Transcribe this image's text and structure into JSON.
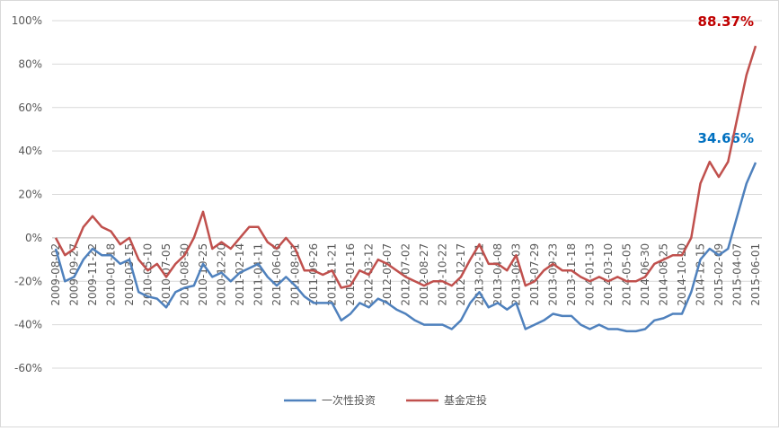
{
  "chart_data": {
    "type": "line",
    "categories": [
      "2009-08-02",
      null,
      "2009-09-27",
      null,
      "2009-11-22",
      null,
      "2010-01-18",
      null,
      "2010-03-15",
      null,
      "2010-05-10",
      null,
      "2010-07-05",
      null,
      "2010-08-30",
      null,
      "2010-10-25",
      null,
      "2010-12-20",
      null,
      "2011-02-14",
      null,
      "2011-04-11",
      null,
      "2011-06-06",
      null,
      "2011-08-01",
      null,
      "2011-09-26",
      null,
      "2011-11-21",
      null,
      "2012-01-16",
      null,
      "2012-03-12",
      null,
      "2012-05-07",
      null,
      "2012-07-02",
      null,
      "2012-08-27",
      null,
      "2012-10-22",
      null,
      "2012-12-17",
      null,
      "2013-02-11",
      null,
      "2013-04-08",
      null,
      "2013-06-03",
      null,
      "2013-07-29",
      null,
      "2013-09-23",
      null,
      "2013-11-18",
      null,
      "2014-01-13",
      null,
      "2014-03-10",
      null,
      "2014-05-05",
      null,
      "2014-06-30",
      null,
      "2014-08-25",
      null,
      "2014-10-20",
      null,
      "2014-12-15",
      null,
      "2015-02-09",
      null,
      "2015-04-07",
      null,
      "2015-06-01"
    ],
    "series": [
      {
        "name": "一次性投资",
        "color": "#4f81bd",
        "values": [
          -5,
          -20,
          -18,
          -10,
          -5,
          -8,
          -8,
          -12,
          -10,
          -25,
          -27,
          -28,
          -32,
          -25,
          -23,
          -22,
          -12,
          -18,
          -16,
          -20,
          -16,
          -14,
          -12,
          -18,
          -22,
          -18,
          -22,
          -27,
          -30,
          -30,
          -30,
          -38,
          -35,
          -30,
          -32,
          -28,
          -30,
          -33,
          -35,
          -38,
          -40,
          -40,
          -40,
          -42,
          -38,
          -30,
          -25,
          -32,
          -30,
          -33,
          -30,
          -42,
          -40,
          -38,
          -35,
          -36,
          -36,
          -40,
          -42,
          -40,
          -42,
          -42,
          -43,
          -43,
          -42,
          -38,
          -37,
          -35,
          -35,
          -25,
          -10,
          -5,
          -8,
          -5,
          10,
          25,
          34.66
        ],
        "value_labels": [
          null,
          null,
          null,
          null,
          null,
          null,
          null,
          null,
          null,
          null,
          null,
          null,
          null,
          null,
          null,
          null,
          null,
          null,
          null,
          null,
          null,
          null,
          null,
          null,
          null,
          null,
          null,
          null,
          null,
          null,
          null,
          null,
          null,
          null,
          null,
          null,
          null,
          null,
          null,
          null,
          null,
          null,
          null,
          null,
          null,
          null,
          null,
          null,
          null,
          null,
          null,
          null,
          null,
          null,
          null,
          null,
          null,
          null,
          null,
          null,
          null,
          null,
          null,
          null,
          null,
          null,
          null,
          null,
          null,
          null,
          null,
          null,
          null,
          null,
          null,
          null,
          "34.66%"
        ],
        "label_color": "#0070c0"
      },
      {
        "name": "基金定投",
        "color": "#c0504d",
        "values": [
          0,
          -8,
          -5,
          5,
          10,
          5,
          3,
          -3,
          0,
          -10,
          -15,
          -12,
          -18,
          -12,
          -8,
          0,
          12,
          -5,
          -2,
          -5,
          0,
          5,
          5,
          -2,
          -5,
          0,
          -5,
          -15,
          -15,
          -17,
          -15,
          -23,
          -22,
          -15,
          -17,
          -10,
          -12,
          -15,
          -18,
          -20,
          -22,
          -20,
          -20,
          -22,
          -18,
          -10,
          -3,
          -12,
          -12,
          -15,
          -8,
          -22,
          -20,
          -15,
          -12,
          -15,
          -15,
          -18,
          -20,
          -18,
          -20,
          -18,
          -20,
          -20,
          -18,
          -12,
          -10,
          -8,
          -8,
          0,
          25,
          35,
          28,
          35,
          55,
          75,
          88.37
        ],
        "value_labels": [
          null,
          null,
          null,
          null,
          null,
          null,
          null,
          null,
          null,
          null,
          null,
          null,
          null,
          null,
          null,
          null,
          null,
          null,
          null,
          null,
          null,
          null,
          null,
          null,
          null,
          null,
          null,
          null,
          null,
          null,
          null,
          null,
          null,
          null,
          null,
          null,
          null,
          null,
          null,
          null,
          null,
          null,
          null,
          null,
          null,
          null,
          null,
          null,
          null,
          null,
          null,
          null,
          null,
          null,
          null,
          null,
          null,
          null,
          null,
          null,
          null,
          null,
          null,
          null,
          null,
          null,
          null,
          null,
          null,
          null,
          null,
          null,
          null,
          null,
          null,
          null,
          "88.37%"
        ],
        "label_color": "#c00000"
      }
    ],
    "ylim": [
      -60,
      100
    ],
    "yticks": [
      {
        "value": -60,
        "label": "-60%"
      },
      {
        "value": -40,
        "label": "-40%"
      },
      {
        "value": -20,
        "label": "-20%"
      },
      {
        "value": 0,
        "label": "0%"
      },
      {
        "value": 20,
        "label": "20%"
      },
      {
        "value": 40,
        "label": "40%"
      },
      {
        "value": 60,
        "label": "60%"
      },
      {
        "value": 80,
        "label": "80%"
      },
      {
        "value": 100,
        "label": "100%"
      }
    ],
    "grid": true,
    "legend": "bottom"
  }
}
